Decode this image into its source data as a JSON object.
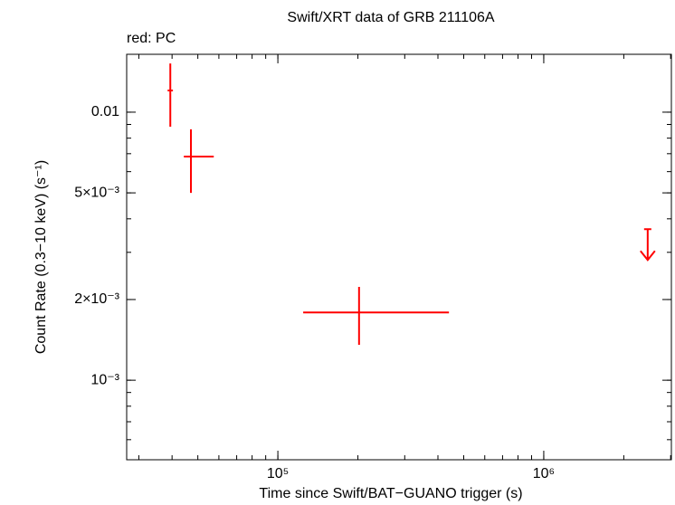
{
  "chart_data": {
    "type": "errorbar",
    "title": "Swift/XRT data of GRB 211106A",
    "subtitle": "red: PC",
    "x_label": "Time since Swift/BAT−GUANO trigger (s)",
    "y_label": "Count Rate (0.3−10 keV) (s⁻¹)",
    "log_x": true,
    "log_y": true,
    "xlim": [
      27000,
      3020000
    ],
    "ylim": [
      0.000505,
      0.01644
    ],
    "xticks": [
      {
        "value": 100000,
        "label": "10⁵"
      },
      {
        "value": 1000000,
        "label": "10⁶"
      }
    ],
    "yticks": [
      {
        "value": 0.001,
        "label": "10⁻³"
      },
      {
        "value": 0.002,
        "label": "2×10⁻³"
      },
      {
        "value": 0.005,
        "label": "5×10⁻³"
      },
      0.01
    ],
    "series": [
      {
        "name": "PC",
        "color": "#ff0000",
        "x": [
          39400,
          47100,
          202000
        ],
        "x_low": [
          38500,
          44300,
          124500
        ],
        "x_high": [
          40300,
          57400,
          440000
        ],
        "y": [
          0.01205,
          0.00683,
          0.00179
        ],
        "y_low": [
          0.00883,
          0.005,
          0.001355
        ],
        "y_high": [
          0.0152,
          0.00863,
          0.00223
        ],
        "upper_limits": {
          "x": [
            2460000
          ],
          "y": [
            0.00366
          ]
        }
      }
    ]
  }
}
